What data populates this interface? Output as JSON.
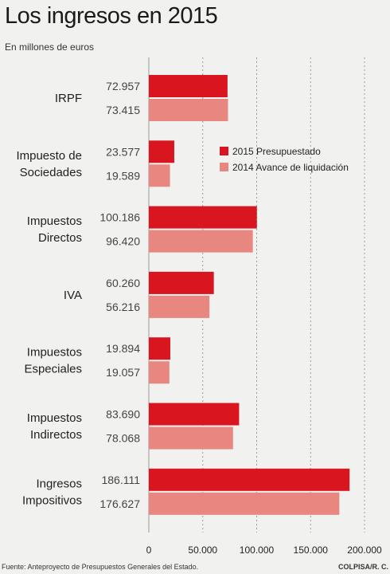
{
  "title": "Los ingresos en 2015",
  "subtitle": "En millones de euros",
  "footer": {
    "source": "Fuente: Anteproyecto de Presupuestos Generales del Estado.",
    "credit": "COLPISA/R. C."
  },
  "colors": {
    "series_2015": "#d9161f",
    "series_2014": "#e8877f",
    "grid": "#9a9a9a",
    "background": "#f1f1f0"
  },
  "chart_data": {
    "type": "bar",
    "orientation": "horizontal",
    "title": "Los ingresos en 2015",
    "subtitle": "En millones de euros",
    "categories": [
      [
        "IRPF"
      ],
      [
        "Impuesto de",
        "Sociedades"
      ],
      [
        "Impuestos",
        "Directos"
      ],
      [
        "IVA"
      ],
      [
        "Impuestos",
        "Especiales"
      ],
      [
        "Impuestos",
        "Indirectos"
      ],
      [
        "Ingresos",
        "Impositivos"
      ]
    ],
    "series": [
      {
        "name": "2015 Presupuestado",
        "values": [
          72957,
          23577,
          100186,
          60260,
          19894,
          83690,
          186111
        ],
        "labels": [
          "72.957",
          "23.577",
          "100.186",
          "60.260",
          "19.894",
          "83.690",
          "186.111"
        ]
      },
      {
        "name": "2014 Avance de liquidación",
        "values": [
          73415,
          19589,
          96420,
          56216,
          19057,
          78068,
          176627
        ],
        "labels": [
          "73.415",
          "19.589",
          "96.420",
          "56.216",
          "19.057",
          "78.068",
          "176.627"
        ]
      }
    ],
    "xlim": [
      0,
      200000
    ],
    "xticks": [
      0,
      50000,
      100000,
      150000,
      200000
    ],
    "xtick_labels": [
      "0",
      "50.000",
      "100.000",
      "150.000",
      "200.000"
    ],
    "grid": "vertical dashed",
    "legend_position": "right, beside second category"
  }
}
